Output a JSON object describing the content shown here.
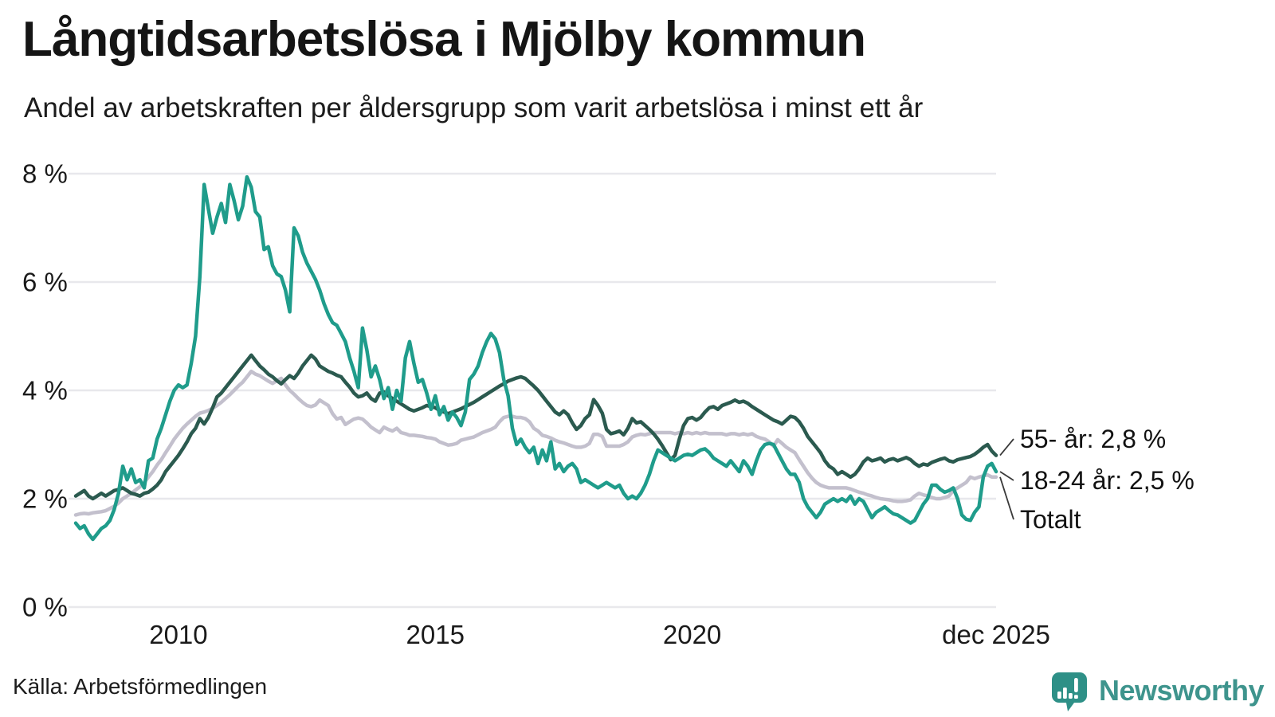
{
  "title": "Långtidsarbetslösa i Mjölby kommun",
  "subtitle": "Andel av arbetskraften per åldersgrupp som varit arbetslösa i minst ett år",
  "source": "Källa: Arbetsförmedlingen",
  "brand": {
    "name": "Newsworthy",
    "badge_color": "#2e9087",
    "text_color": "#3e948d",
    "icon": "bar-chart-speech-bubble-icon"
  },
  "chart_data": {
    "type": "line",
    "title": "Långtidsarbetslösa i Mjölby kommun",
    "xlabel": "",
    "ylabel": "",
    "x_range": [
      "2008-01",
      "2025-12"
    ],
    "x_step_months": 1,
    "ylim": [
      0,
      8.4
    ],
    "grid": true,
    "gridline_color": "#e8e8ec",
    "axis_text_color": "#1a1a1a",
    "legend_position": "end-labels-right",
    "y_ticks": [
      {
        "value": 0,
        "label": "0 %"
      },
      {
        "value": 2,
        "label": "2 %"
      },
      {
        "value": 4,
        "label": "4 %"
      },
      {
        "value": 6,
        "label": "6 %"
      },
      {
        "value": 8,
        "label": "8 %"
      }
    ],
    "x_ticks": [
      {
        "value": 2010,
        "label": "2010"
      },
      {
        "value": 2015,
        "label": "2015"
      },
      {
        "value": 2020,
        "label": "2020"
      },
      {
        "value": 2025.917,
        "label": "dec 2025"
      }
    ],
    "series": [
      {
        "name": "Totalt",
        "end_label": "Totalt",
        "color": "#c3c0cd",
        "values": [
          1.7,
          1.72,
          1.73,
          1.72,
          1.74,
          1.75,
          1.76,
          1.78,
          1.82,
          1.86,
          1.92,
          2.0,
          2.05,
          2.1,
          2.16,
          2.22,
          2.3,
          2.4,
          2.5,
          2.62,
          2.72,
          2.85,
          2.97,
          3.1,
          3.2,
          3.3,
          3.38,
          3.45,
          3.52,
          3.58,
          3.6,
          3.63,
          3.67,
          3.72,
          3.78,
          3.85,
          3.92,
          4.0,
          4.08,
          4.15,
          4.25,
          4.35,
          4.3,
          4.27,
          4.22,
          4.17,
          4.13,
          4.18,
          4.22,
          4.1,
          4.0,
          3.93,
          3.85,
          3.78,
          3.72,
          3.7,
          3.73,
          3.82,
          3.77,
          3.72,
          3.57,
          3.47,
          3.5,
          3.37,
          3.42,
          3.47,
          3.49,
          3.47,
          3.4,
          3.32,
          3.27,
          3.22,
          3.32,
          3.28,
          3.25,
          3.3,
          3.22,
          3.2,
          3.17,
          3.17,
          3.16,
          3.15,
          3.13,
          3.12,
          3.1,
          3.05,
          3.02,
          2.99,
          3.0,
          3.02,
          3.08,
          3.1,
          3.12,
          3.14,
          3.18,
          3.22,
          3.25,
          3.28,
          3.32,
          3.42,
          3.5,
          3.52,
          3.52,
          3.5,
          3.5,
          3.48,
          3.42,
          3.3,
          3.25,
          3.17,
          3.15,
          3.12,
          3.08,
          3.05,
          3.03,
          3.0,
          2.97,
          2.95,
          2.95,
          2.97,
          3.02,
          3.19,
          3.19,
          3.15,
          2.97,
          2.97,
          2.97,
          2.97,
          3.0,
          3.05,
          3.14,
          3.17,
          3.19,
          3.18,
          3.2,
          3.22,
          3.22,
          3.22,
          3.22,
          3.22,
          3.2,
          3.22,
          3.2,
          3.22,
          3.2,
          3.22,
          3.2,
          3.22,
          3.2,
          3.2,
          3.2,
          3.2,
          3.18,
          3.2,
          3.2,
          3.18,
          3.2,
          3.18,
          3.2,
          3.15,
          3.12,
          3.1,
          3.05,
          2.97,
          3.09,
          3.02,
          2.95,
          2.9,
          2.85,
          2.72,
          2.6,
          2.48,
          2.38,
          2.3,
          2.25,
          2.22,
          2.2,
          2.2,
          2.2,
          2.2,
          2.2,
          2.18,
          2.15,
          2.12,
          2.1,
          2.07,
          2.05,
          2.02,
          2.0,
          1.99,
          1.98,
          1.96,
          1.95,
          1.95,
          1.96,
          1.98,
          2.05,
          2.1,
          2.07,
          2.05,
          2.02,
          2.0,
          2.0,
          2.02,
          2.05,
          2.15,
          2.2,
          2.25,
          2.3,
          2.4,
          2.37,
          2.4,
          2.42,
          2.44,
          2.4,
          2.4
        ]
      },
      {
        "name": "55- år",
        "end_label": "55- år: 2,8 %",
        "color": "#2b5a4f",
        "values": [
          2.05,
          2.1,
          2.15,
          2.05,
          2.0,
          2.05,
          2.1,
          2.05,
          2.1,
          2.15,
          2.17,
          2.2,
          2.15,
          2.1,
          2.08,
          2.05,
          2.1,
          2.12,
          2.18,
          2.25,
          2.35,
          2.5,
          2.6,
          2.7,
          2.8,
          2.92,
          3.05,
          3.2,
          3.3,
          3.48,
          3.38,
          3.5,
          3.68,
          3.88,
          3.95,
          4.05,
          4.15,
          4.25,
          4.35,
          4.45,
          4.55,
          4.65,
          4.55,
          4.45,
          4.38,
          4.3,
          4.25,
          4.18,
          4.12,
          4.2,
          4.27,
          4.22,
          4.32,
          4.45,
          4.55,
          4.65,
          4.58,
          4.45,
          4.4,
          4.35,
          4.32,
          4.28,
          4.25,
          4.15,
          4.06,
          3.95,
          3.88,
          3.9,
          3.95,
          3.85,
          3.8,
          3.95,
          3.97,
          3.9,
          3.85,
          3.8,
          3.75,
          3.7,
          3.65,
          3.62,
          3.65,
          3.68,
          3.72,
          3.7,
          3.68,
          3.63,
          3.6,
          3.57,
          3.6,
          3.63,
          3.66,
          3.7,
          3.74,
          3.78,
          3.83,
          3.88,
          3.93,
          3.98,
          4.03,
          4.08,
          4.12,
          4.17,
          4.2,
          4.23,
          4.25,
          4.22,
          4.15,
          4.08,
          4.0,
          3.9,
          3.8,
          3.7,
          3.6,
          3.55,
          3.62,
          3.55,
          3.4,
          3.28,
          3.35,
          3.48,
          3.55,
          3.83,
          3.72,
          3.58,
          3.28,
          3.2,
          3.22,
          3.25,
          3.18,
          3.3,
          3.48,
          3.4,
          3.42,
          3.35,
          3.28,
          3.2,
          3.1,
          2.98,
          2.85,
          2.72,
          2.8,
          3.1,
          3.35,
          3.48,
          3.5,
          3.45,
          3.5,
          3.6,
          3.68,
          3.7,
          3.65,
          3.72,
          3.75,
          3.78,
          3.82,
          3.78,
          3.8,
          3.76,
          3.7,
          3.65,
          3.6,
          3.55,
          3.5,
          3.45,
          3.42,
          3.38,
          3.45,
          3.52,
          3.5,
          3.42,
          3.3,
          3.15,
          3.05,
          2.95,
          2.85,
          2.7,
          2.6,
          2.55,
          2.45,
          2.5,
          2.45,
          2.4,
          2.45,
          2.55,
          2.68,
          2.75,
          2.7,
          2.72,
          2.75,
          2.68,
          2.72,
          2.74,
          2.7,
          2.73,
          2.76,
          2.72,
          2.65,
          2.6,
          2.64,
          2.62,
          2.67,
          2.7,
          2.73,
          2.75,
          2.7,
          2.68,
          2.72,
          2.74,
          2.76,
          2.78,
          2.82,
          2.88,
          2.95,
          3.0,
          2.88,
          2.8
        ]
      },
      {
        "name": "18-24 år",
        "end_label": "18-24 år: 2,5 %",
        "color": "#1f9c8b",
        "values": [
          1.55,
          1.45,
          1.5,
          1.35,
          1.25,
          1.35,
          1.45,
          1.5,
          1.6,
          1.8,
          2.1,
          2.6,
          2.35,
          2.55,
          2.3,
          2.35,
          2.2,
          2.7,
          2.75,
          3.1,
          3.3,
          3.55,
          3.8,
          4.0,
          4.1,
          4.05,
          4.1,
          4.5,
          5.0,
          6.1,
          7.8,
          7.35,
          6.9,
          7.2,
          7.45,
          7.1,
          7.8,
          7.5,
          7.15,
          7.4,
          7.94,
          7.75,
          7.3,
          7.2,
          6.6,
          6.65,
          6.3,
          6.15,
          6.1,
          5.85,
          5.45,
          7.0,
          6.85,
          6.55,
          6.35,
          6.2,
          6.05,
          5.85,
          5.6,
          5.4,
          5.25,
          5.2,
          5.05,
          4.9,
          4.6,
          4.35,
          4.05,
          5.15,
          4.75,
          4.25,
          4.45,
          4.2,
          3.85,
          4.05,
          3.65,
          4.0,
          3.8,
          4.6,
          4.9,
          4.5,
          4.15,
          4.2,
          3.95,
          3.65,
          3.9,
          3.55,
          3.7,
          3.45,
          3.6,
          3.5,
          3.35,
          3.6,
          4.2,
          4.3,
          4.45,
          4.7,
          4.9,
          5.05,
          4.95,
          4.7,
          4.2,
          3.9,
          3.3,
          3.0,
          3.1,
          2.95,
          2.85,
          2.95,
          2.65,
          2.9,
          2.7,
          3.05,
          2.55,
          2.65,
          2.5,
          2.6,
          2.65,
          2.55,
          2.3,
          2.35,
          2.3,
          2.25,
          2.2,
          2.25,
          2.3,
          2.25,
          2.2,
          2.25,
          2.1,
          2.0,
          2.05,
          2.0,
          2.1,
          2.25,
          2.45,
          2.7,
          2.9,
          2.85,
          2.8,
          2.75,
          2.7,
          2.75,
          2.8,
          2.82,
          2.8,
          2.85,
          2.9,
          2.92,
          2.85,
          2.75,
          2.7,
          2.65,
          2.6,
          2.7,
          2.6,
          2.5,
          2.7,
          2.6,
          2.45,
          2.7,
          2.9,
          3.0,
          3.02,
          3.0,
          2.85,
          2.7,
          2.55,
          2.45,
          2.45,
          2.3,
          2.0,
          1.85,
          1.75,
          1.65,
          1.75,
          1.9,
          1.95,
          2.0,
          1.95,
          2.0,
          1.95,
          2.05,
          1.9,
          2.0,
          1.95,
          1.8,
          1.65,
          1.75,
          1.8,
          1.85,
          1.78,
          1.72,
          1.7,
          1.65,
          1.6,
          1.55,
          1.6,
          1.75,
          1.9,
          2.0,
          2.25,
          2.25,
          2.17,
          2.12,
          2.15,
          2.2,
          2.0,
          1.7,
          1.62,
          1.6,
          1.75,
          1.85,
          2.4,
          2.6,
          2.65,
          2.5
        ]
      }
    ]
  }
}
